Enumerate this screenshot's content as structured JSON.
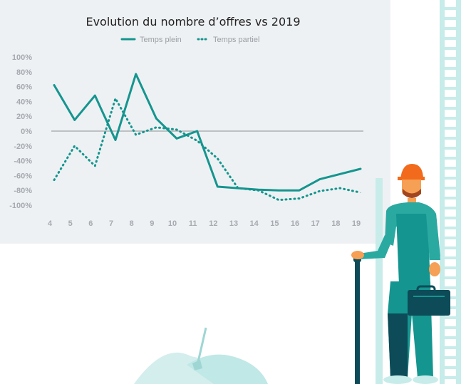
{
  "colors": {
    "series": "#15958f",
    "card": "#eef1f3",
    "zero_line": "#8c9196"
  },
  "chart_data": {
    "type": "line",
    "title": "Evolution du nombre d’offres vs 2019",
    "xlabel": "",
    "ylabel": "",
    "ylim": [
      -100,
      100
    ],
    "y_ticks": [
      "100%",
      "80%",
      "60%",
      "40%",
      "20%",
      "0%",
      "-20%",
      "-40%",
      "-60%",
      "-80%",
      "-100%"
    ],
    "x": [
      4,
      5,
      6,
      7,
      8,
      9,
      10,
      11,
      12,
      13,
      14,
      15,
      16,
      17,
      18,
      19
    ],
    "x_ticks": [
      "4",
      "5",
      "6",
      "7",
      "8",
      "9",
      "10",
      "11",
      "12",
      "13",
      "14",
      "15",
      "16",
      "17",
      "18",
      "19"
    ],
    "legend_position": "top",
    "grid": false,
    "series": [
      {
        "name": "Temps plein",
        "style": "solid",
        "points": [
          [
            4,
            62
          ],
          [
            5,
            15
          ],
          [
            6,
            48
          ],
          [
            7,
            -12
          ],
          [
            8,
            77
          ],
          [
            9,
            17
          ],
          [
            10,
            -10
          ],
          [
            11,
            0
          ],
          [
            12,
            -75
          ],
          [
            13,
            -77
          ],
          [
            14,
            -79
          ],
          [
            15,
            -80
          ],
          [
            16,
            -80
          ],
          [
            17,
            -65
          ],
          [
            18,
            -58
          ],
          [
            19,
            -51
          ]
        ]
      },
      {
        "name": "Temps partiel",
        "style": "dotted",
        "points": [
          [
            4,
            -66
          ],
          [
            5,
            -20
          ],
          [
            6,
            -47
          ],
          [
            7,
            44
          ],
          [
            8,
            -5
          ],
          [
            9,
            5
          ],
          [
            10,
            2
          ],
          [
            11,
            -13
          ],
          [
            12,
            -37
          ],
          [
            13,
            -77
          ],
          [
            14,
            -80
          ],
          [
            15,
            -93
          ],
          [
            16,
            -91
          ],
          [
            17,
            -81
          ],
          [
            18,
            -77
          ],
          [
            19,
            -83
          ]
        ]
      }
    ]
  }
}
